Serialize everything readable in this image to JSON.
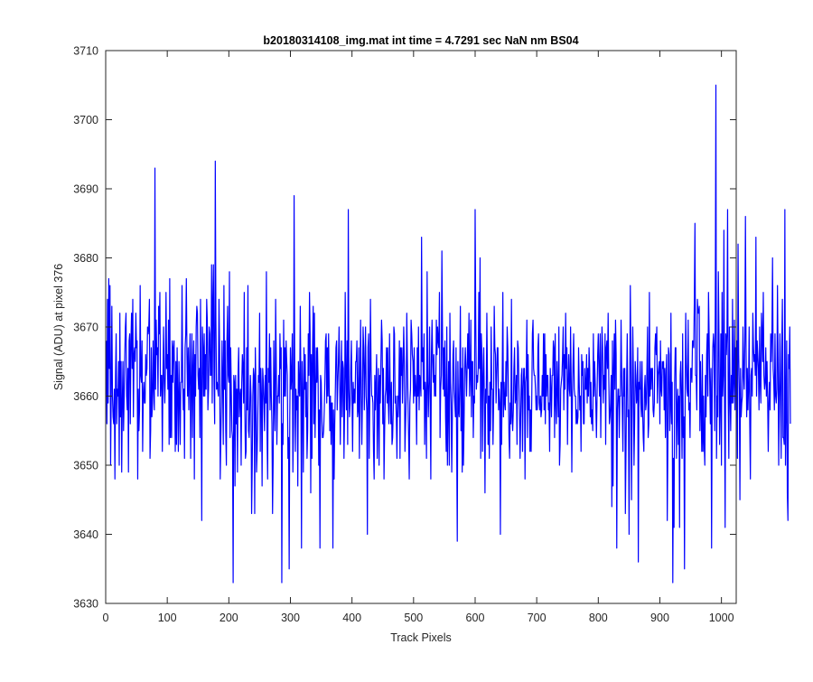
{
  "chart_data": {
    "type": "line",
    "title": "b20180314108_img.mat int time = 4.7291 sec  NaN nm BS04",
    "xlabel": "Track Pixels",
    "ylabel": "Signal (ADU) at pixel 376",
    "xlim": [
      0,
      1024
    ],
    "ylim": [
      3630,
      3710
    ],
    "xticks": [
      0,
      100,
      200,
      300,
      400,
      500,
      600,
      700,
      800,
      900,
      1000
    ],
    "yticks": [
      3630,
      3640,
      3650,
      3660,
      3670,
      3680,
      3690,
      3700,
      3710
    ],
    "grid": false,
    "box": true,
    "series": [
      {
        "color": "#0000ff",
        "x_start": 1,
        "x_step": 1,
        "values": [
          3668,
          3656,
          3674,
          3659,
          3677,
          3664,
          3676,
          3650,
          3661,
          3673,
          3660,
          3657,
          3656,
          3661,
          3648,
          3663,
          3669,
          3656,
          3661,
          3660,
          3665,
          3650,
          3672,
          3657,
          3665,
          3649,
          3659,
          3665,
          3655,
          3660,
          3666,
          3670,
          3672,
          3660,
          3658,
          3664,
          3649,
          3668,
          3669,
          3656,
          3668,
          3672,
          3664,
          3674,
          3657,
          3666,
          3667,
          3665,
          3672,
          3667,
          3668,
          3648,
          3661,
          3655,
          3658,
          3676,
          3663,
          3662,
          3668,
          3652,
          3660,
          3662,
          3659,
          3659,
          3666,
          3663,
          3664,
          3670,
          3669,
          3670,
          3674,
          3651,
          3655,
          3667,
          3657,
          3659,
          3668,
          3661,
          3658,
          3693,
          3661,
          3671,
          3666,
          3667,
          3660,
          3673,
          3669,
          3675,
          3660,
          3663,
          3663,
          3652,
          3663,
          3670,
          3662,
          3659,
          3664,
          3675,
          3664,
          3666,
          3661,
          3671,
          3653,
          3677,
          3654,
          3663,
          3654,
          3668,
          3662,
          3667,
          3668,
          3661,
          3652,
          3665,
          3653,
          3667,
          3660,
          3652,
          3665,
          3660,
          3653,
          3662,
          3662,
          3676,
          3663,
          3658,
          3661,
          3651,
          3667,
          3669,
          3677,
          3666,
          3660,
          3667,
          3658,
          3664,
          3669,
          3651,
          3662,
          3669,
          3654,
          3664,
          3668,
          3648,
          3666,
          3660,
          3670,
          3673,
          3672,
          3663,
          3661,
          3664,
          3654,
          3674,
          3661,
          3642,
          3670,
          3667,
          3660,
          3669,
          3660,
          3666,
          3661,
          3674,
          3671,
          3658,
          3661,
          3670,
          3669,
          3663,
          3663,
          3679,
          3659,
          3674,
          3679,
          3662,
          3656,
          3694,
          3671,
          3661,
          3662,
          3661,
          3660,
          3674,
          3667,
          3648,
          3654,
          3659,
          3668,
          3662,
          3653,
          3676,
          3661,
          3668,
          3655,
          3650,
          3668,
          3673,
          3663,
          3662,
          3678,
          3654,
          3667,
          3661,
          3655,
          3654,
          3633,
          3663,
          3662,
          3647,
          3663,
          3656,
          3661,
          3649,
          3663,
          3667,
          3657,
          3660,
          3661,
          3650,
          3662,
          3666,
          3664,
          3659,
          3675,
          3658,
          3651,
          3652,
          3667,
          3658,
          3676,
          3655,
          3654,
          3658,
          3663,
          3660,
          3643,
          3650,
          3660,
          3664,
          3663,
          3643,
          3667,
          3661,
          3649,
          3652,
          3657,
          3663,
          3662,
          3672,
          3652,
          3664,
          3660,
          3647,
          3664,
          3662,
          3659,
          3655,
          3663,
          3659,
          3678,
          3655,
          3648,
          3664,
          3662,
          3669,
          3658,
          3667,
          3660,
          3656,
          3643,
          3651,
          3668,
          3659,
          3655,
          3674,
          3665,
          3653,
          3660,
          3660,
          3663,
          3659,
          3669,
          3664,
          3667,
          3633,
          3656,
          3653,
          3671,
          3660,
          3667,
          3660,
          3668,
          3665,
          3663,
          3651,
          3654,
          3635,
          3657,
          3667,
          3661,
          3663,
          3669,
          3649,
          3656,
          3689,
          3664,
          3652,
          3661,
          3658,
          3660,
          3647,
          3665,
          3661,
          3660,
          3673,
          3662,
          3638,
          3665,
          3660,
          3649,
          3667,
          3661,
          3666,
          3657,
          3662,
          3651,
          3655,
          3669,
          3663,
          3675,
          3669,
          3646,
          3666,
          3651,
          3667,
          3673,
          3656,
          3672,
          3654,
          3660,
          3667,
          3662,
          3667,
          3662,
          3650,
          3658,
          3638,
          3663,
          3662,
          3657,
          3654,
          3654,
          3655,
          3658,
          3662,
          3668,
          3669,
          3659,
          3667,
          3660,
          3669,
          3661,
          3655,
          3660,
          3653,
          3659,
          3659,
          3638,
          3658,
          3648,
          3656,
          3661,
          3667,
          3668,
          3658,
          3662,
          3665,
          3670,
          3663,
          3653,
          3661,
          3668,
          3657,
          3665,
          3664,
          3651,
          3658,
          3675,
          3663,
          3658,
          3668,
          3653,
          3687,
          3661,
          3657,
          3659,
          3664,
          3668,
          3660,
          3652,
          3662,
          3659,
          3661,
          3659,
          3665,
          3665,
          3668,
          3657,
          3658,
          3667,
          3651,
          3662,
          3671,
          3660,
          3653,
          3660,
          3670,
          3667,
          3658,
          3664,
          3670,
          3660,
          3658,
          3640,
          3667,
          3669,
          3651,
          3661,
          3674,
          3664,
          3660,
          3660,
          3659,
          3652,
          3648,
          3663,
          3658,
          3662,
          3666,
          3651,
          3658,
          3664,
          3650,
          3663,
          3659,
          3665,
          3671,
          3668,
          3656,
          3664,
          3648,
          3655,
          3660,
          3661,
          3667,
          3659,
          3667,
          3659,
          3656,
          3669,
          3661,
          3656,
          3662,
          3653,
          3654,
          3658,
          3670,
          3669,
          3659,
          3660,
          3657,
          3651,
          3660,
          3657,
          3661,
          3668,
          3651,
          3667,
          3663,
          3667,
          3659,
          3664,
          3670,
          3665,
          3652,
          3656,
          3660,
          3672,
          3665,
          3659,
          3654,
          3648,
          3659,
          3661,
          3671,
          3669,
          3666,
          3665,
          3659,
          3667,
          3660,
          3663,
          3661,
          3653,
          3667,
          3660,
          3670,
          3658,
          3663,
          3662,
          3660,
          3683,
          3665,
          3667,
          3661,
          3669,
          3653,
          3662,
          3660,
          3651,
          3678,
          3662,
          3657,
          3662,
          3670,
          3659,
          3648,
          3666,
          3671,
          3665,
          3662,
          3666,
          3660,
          3663,
          3660,
          3671,
          3666,
          3670,
          3668,
          3667,
          3675,
          3654,
          3661,
          3663,
          3681,
          3669,
          3661,
          3667,
          3660,
          3668,
          3657,
          3652,
          3670,
          3650,
          3658,
          3665,
          3650,
          3672,
          3662,
          3659,
          3649,
          3657,
          3666,
          3668,
          3661,
          3659,
          3657,
          3667,
          3653,
          3639,
          3665,
          3658,
          3657,
          3662,
          3673,
          3655,
          3664,
          3649,
          3667,
          3650,
          3656,
          3664,
          3667,
          3664,
          3660,
          3664,
          3669,
          3664,
          3672,
          3660,
          3663,
          3671,
          3657,
          3665,
          3665,
          3654,
          3660,
          3659,
          3687,
          3671,
          3661,
          3663,
          3662,
          3664,
          3675,
          3664,
          3680,
          3651,
          3669,
          3666,
          3652,
          3663,
          3667,
          3659,
          3646,
          3661,
          3659,
          3672,
          3663,
          3653,
          3660,
          3651,
          3662,
          3655,
          3670,
          3661,
          3661,
          3653,
          3659,
          3673,
          3667,
          3666,
          3659,
          3663,
          3667,
          3667,
          3658,
          3661,
          3659,
          3640,
          3662,
          3653,
          3663,
          3675,
          3657,
          3662,
          3659,
          3658,
          3665,
          3660,
          3670,
          3667,
          3661,
          3654,
          3651,
          3659,
          3656,
          3674,
          3657,
          3655,
          3658,
          3664,
          3667,
          3659,
          3660,
          3663,
          3653,
          3668,
          3667,
          3662,
          3658,
          3651,
          3657,
          3663,
          3664,
          3652,
          3661,
          3664,
          3664,
          3648,
          3662,
          3663,
          3671,
          3654,
          3666,
          3658,
          3660,
          3652,
          3658,
          3652,
          3660,
          3669,
          3671,
          3664,
          3663,
          3663,
          3661,
          3658,
          3660,
          3658,
          3667,
          3669,
          3659,
          3658,
          3660,
          3657,
          3658,
          3663,
          3660,
          3669,
          3658,
          3669,
          3656,
          3666,
          3660,
          3663,
          3663,
          3658,
          3659,
          3652,
          3664,
          3661,
          3657,
          3663,
          3663,
          3668,
          3667,
          3654,
          3669,
          3659,
          3656,
          3665,
          3661,
          3657,
          3670,
          3650,
          3653,
          3661,
          3662,
          3663,
          3666,
          3670,
          3658,
          3666,
          3661,
          3672,
          3664,
          3667,
          3653,
          3662,
          3666,
          3661,
          3660,
          3670,
          3662,
          3649,
          3660,
          3665,
          3669,
          3661,
          3660,
          3660,
          3656,
          3658,
          3656,
          3657,
          3667,
          3662,
          3658,
          3660,
          3652,
          3666,
          3663,
          3665,
          3656,
          3656,
          3664,
          3661,
          3661,
          3666,
          3659,
          3664,
          3660,
          3667,
          3664,
          3657,
          3662,
          3656,
          3658,
          3655,
          3669,
          3660,
          3665,
          3662,
          3659,
          3654,
          3660,
          3666,
          3669,
          3664,
          3660,
          3669,
          3654,
          3663,
          3670,
          3667,
          3659,
          3663,
          3661,
          3669,
          3653,
          3667,
          3668,
          3664,
          3672,
          3663,
          3656,
          3657,
          3659,
          3663,
          3644,
          3668,
          3647,
          3664,
          3669,
          3661,
          3671,
          3666,
          3638,
          3658,
          3661,
          3661,
          3654,
          3660,
          3660,
          3671,
          3663,
          3658,
          3652,
          3664,
          3660,
          3664,
          3643,
          3652,
          3662,
          3669,
          3657,
          3658,
          3640,
          3661,
          3676,
          3665,
          3645,
          3658,
          3670,
          3663,
          3650,
          3656,
          3665,
          3663,
          3659,
          3660,
          3667,
          3636,
          3662,
          3661,
          3665,
          3659,
          3657,
          3665,
          3658,
          3654,
          3652,
          3661,
          3663,
          3658,
          3659,
          3664,
          3670,
          3654,
          3656,
          3675,
          3660,
          3664,
          3661,
          3664,
          3664,
          3658,
          3657,
          3659,
          3667,
          3669,
          3666,
          3670,
          3659,
          3663,
          3664,
          3665,
          3656,
          3668,
          3661,
          3660,
          3665,
          3664,
          3665,
          3658,
          3664,
          3654,
          3663,
          3666,
          3642,
          3653,
          3667,
          3666,
          3655,
          3658,
          3672,
          3656,
          3662,
          3633,
          3651,
          3641,
          3662,
          3667,
          3667,
          3651,
          3658,
          3661,
          3653,
          3660,
          3641,
          3663,
          3665,
          3660,
          3651,
          3669,
          3654,
          3657,
          3635,
          3658,
          3672,
          3665,
          3661,
          3660,
          3671,
          3658,
          3659,
          3654,
          3664,
          3664,
          3662,
          3668,
          3668,
          3667,
          3674,
          3685,
          3663,
          3663,
          3658,
          3674,
          3672,
          3672,
          3673,
          3655,
          3665,
          3658,
          3652,
          3666,
          3652,
          3660,
          3653,
          3650,
          3663,
          3657,
          3666,
          3669,
          3660,
          3675,
          3669,
          3662,
          3656,
          3664,
          3638,
          3661,
          3667,
          3669,
          3667,
          3655,
          3673,
          3705,
          3651,
          3660,
          3657,
          3678,
          3669,
          3653,
          3659,
          3669,
          3650,
          3675,
          3660,
          3663,
          3684,
          3660,
          3641,
          3669,
          3666,
          3669,
          3687,
          3660,
          3651,
          3670,
          3660,
          3655,
          3663,
          3659,
          3674,
          3659,
          3662,
          3671,
          3658,
          3667,
          3665,
          3668,
          3651,
          3682,
          3666,
          3661,
          3645,
          3664,
          3657,
          3659,
          3660,
          3670,
          3663,
          3661,
          3668,
          3686,
          3667,
          3657,
          3664,
          3658,
          3661,
          3670,
          3656,
          3648,
          3663,
          3664,
          3660,
          3672,
          3667,
          3665,
          3666,
          3663,
          3683,
          3660,
          3668,
          3666,
          3664,
          3658,
          3670,
          3662,
          3659,
          3672,
          3669,
          3665,
          3675,
          3663,
          3661,
          3662,
          3667,
          3660,
          3665,
          3660,
          3652,
          3659,
          3662,
          3658,
          3669,
          3665,
          3669,
          3680,
          3664,
          3662,
          3658,
          3669,
          3660,
          3659,
          3661,
          3676,
          3665,
          3650,
          3660,
          3669,
          3660,
          3651,
          3667,
          3674,
          3654,
          3654,
          3653,
          3687,
          3650,
          3658,
          3668,
          3646,
          3642,
          3666,
          3664,
          3670,
          3656
        ]
      }
    ]
  }
}
